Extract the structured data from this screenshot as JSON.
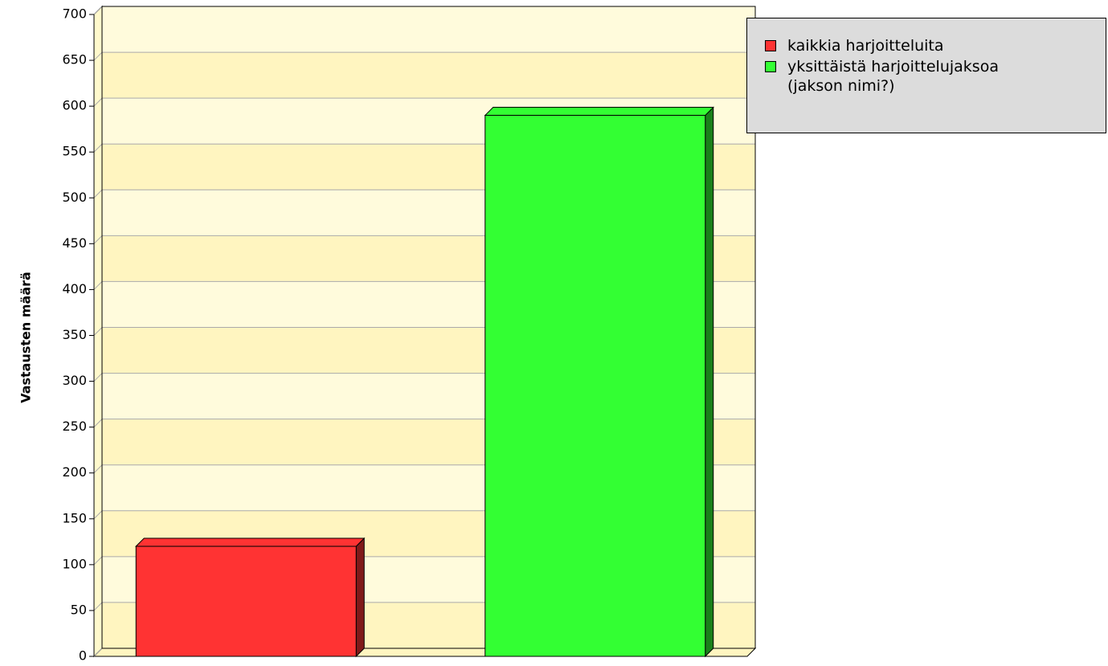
{
  "chart_data": {
    "type": "bar",
    "ylabel": "Vastausten määrä",
    "categories": [
      null
    ],
    "series": [
      {
        "name": "kaikkia harjoitteluita",
        "color": "#ff3333",
        "values": [
          120
        ]
      },
      {
        "name": "yksittäistä harjoittelujaksoa (jakson nimi?)",
        "color": "#33ff33",
        "values": [
          590
        ]
      }
    ],
    "ylim": [
      0,
      700
    ],
    "yticks": [
      0,
      50,
      100,
      150,
      200,
      250,
      300,
      350,
      400,
      450,
      500,
      550,
      600,
      650,
      700
    ],
    "grid": true
  }
}
